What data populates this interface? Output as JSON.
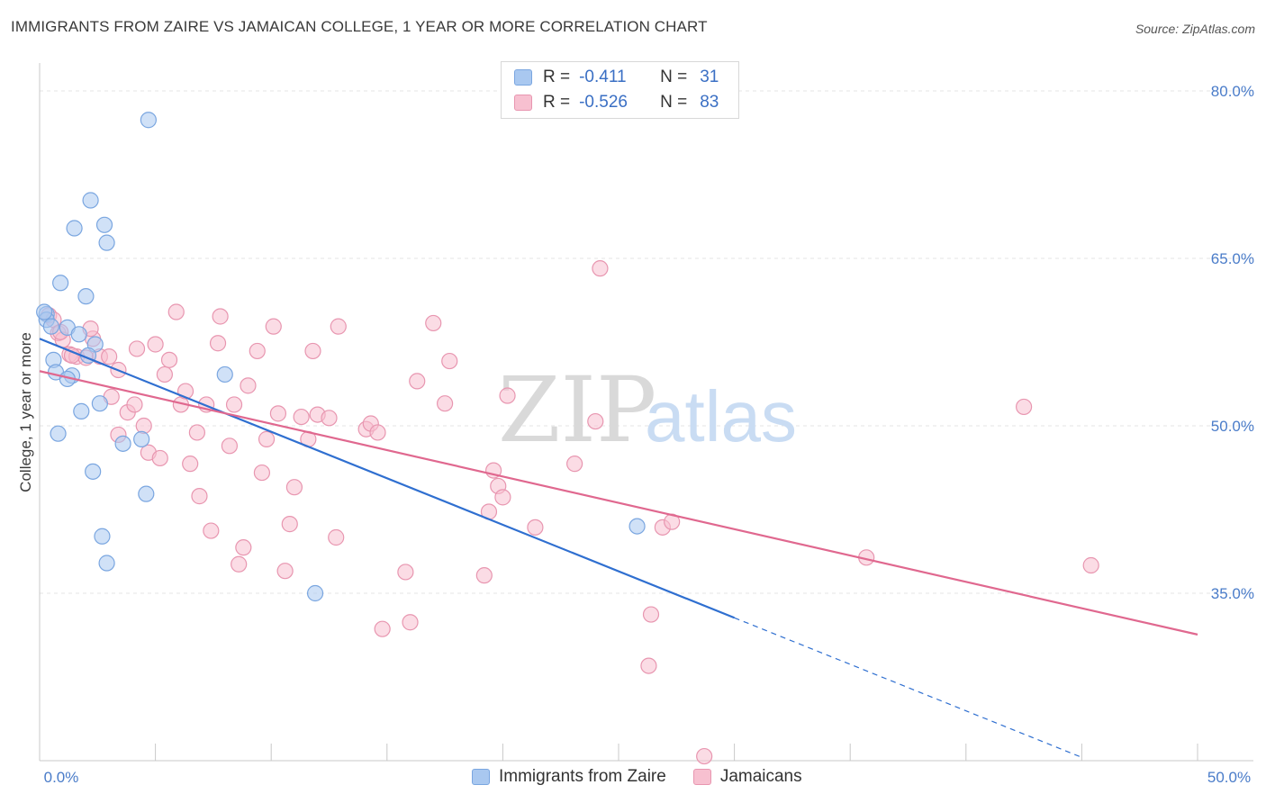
{
  "header": {
    "title": "IMMIGRANTS FROM ZAIRE VS JAMAICAN COLLEGE, 1 YEAR OR MORE CORRELATION CHART",
    "source": "Source: ZipAtlas.com"
  },
  "watermark": {
    "zip": "ZIP",
    "atlas": "atlas"
  },
  "legend": {
    "rows": [
      {
        "r_label": "R =",
        "r_value": "-0.411",
        "n_label": "N =",
        "n_value": "31",
        "color": "#a9c8f0",
        "border": "#7aa6e0"
      },
      {
        "r_label": "R =",
        "r_value": "-0.526",
        "n_label": "N =",
        "n_value": "83",
        "color": "#f7c0d0",
        "border": "#e896b0"
      }
    ]
  },
  "bottom_legend": [
    {
      "label": "Immigrants from Zaire",
      "color": "#a9c8f0",
      "border": "#7aa6e0"
    },
    {
      "label": "Jamaicans",
      "color": "#f7c0d0",
      "border": "#e896b0"
    }
  ],
  "chart_data": {
    "type": "scatter",
    "ylabel": "College, 1 year or more",
    "xlim": [
      0,
      50
    ],
    "ylim": [
      20,
      82.5
    ],
    "x_tick_labels": [
      "0.0%",
      "50.0%"
    ],
    "y_ticks": [
      35,
      50,
      65,
      80
    ],
    "y_tick_labels": [
      "35.0%",
      "50.0%",
      "65.0%",
      "80.0%"
    ],
    "grid": true,
    "series": [
      {
        "name": "Immigrants from Zaire",
        "color": "#7aa6e0",
        "fill": "#a9c8f0",
        "trend": {
          "x0": 0,
          "y0": 57.8,
          "x1": 30,
          "y1": 32.8,
          "dash_to_x": 45,
          "dash_to_y": 20.3,
          "color": "#2f6fd0"
        },
        "points": [
          [
            4.7,
            77.4
          ],
          [
            2.2,
            70.2
          ],
          [
            1.5,
            67.7
          ],
          [
            2.8,
            68.0
          ],
          [
            2.9,
            66.4
          ],
          [
            0.9,
            62.8
          ],
          [
            2.0,
            61.6
          ],
          [
            0.3,
            60.0
          ],
          [
            0.3,
            59.5
          ],
          [
            0.5,
            58.9
          ],
          [
            1.2,
            58.8
          ],
          [
            1.7,
            58.2
          ],
          [
            2.4,
            57.3
          ],
          [
            2.1,
            56.3
          ],
          [
            0.6,
            55.9
          ],
          [
            0.7,
            54.8
          ],
          [
            1.4,
            54.5
          ],
          [
            1.2,
            54.2
          ],
          [
            8.0,
            54.6
          ],
          [
            2.6,
            52.0
          ],
          [
            1.8,
            51.3
          ],
          [
            0.8,
            49.3
          ],
          [
            4.4,
            48.8
          ],
          [
            3.6,
            48.4
          ],
          [
            2.3,
            45.9
          ],
          [
            4.6,
            43.9
          ],
          [
            2.7,
            40.1
          ],
          [
            2.9,
            37.7
          ],
          [
            25.8,
            41.0
          ],
          [
            11.9,
            35.0
          ],
          [
            0.2,
            60.2
          ]
        ]
      },
      {
        "name": "Jamaicans",
        "color": "#e896b0",
        "fill": "#f7c0d0",
        "trend": {
          "x0": 0,
          "y0": 54.9,
          "x1": 50,
          "y1": 31.3,
          "color": "#e0688f"
        },
        "points": [
          [
            0.4,
            59.9
          ],
          [
            0.6,
            59.5
          ],
          [
            0.8,
            58.3
          ],
          [
            1.0,
            57.7
          ],
          [
            1.3,
            56.4
          ],
          [
            1.6,
            56.2
          ],
          [
            2.0,
            56.1
          ],
          [
            2.3,
            57.8
          ],
          [
            2.6,
            56.2
          ],
          [
            3.0,
            56.2
          ],
          [
            3.4,
            55.0
          ],
          [
            3.1,
            52.6
          ],
          [
            3.4,
            49.2
          ],
          [
            3.8,
            51.2
          ],
          [
            4.1,
            51.9
          ],
          [
            4.2,
            56.9
          ],
          [
            4.5,
            50.0
          ],
          [
            4.7,
            47.6
          ],
          [
            5.0,
            57.3
          ],
          [
            5.2,
            47.1
          ],
          [
            5.4,
            54.6
          ],
          [
            5.6,
            55.9
          ],
          [
            5.9,
            60.2
          ],
          [
            6.1,
            51.9
          ],
          [
            6.3,
            53.1
          ],
          [
            6.5,
            46.6
          ],
          [
            6.8,
            49.4
          ],
          [
            6.9,
            43.7
          ],
          [
            7.2,
            51.9
          ],
          [
            7.4,
            40.6
          ],
          [
            7.8,
            59.8
          ],
          [
            7.7,
            57.4
          ],
          [
            8.2,
            48.2
          ],
          [
            8.4,
            51.9
          ],
          [
            8.6,
            37.6
          ],
          [
            8.8,
            39.1
          ],
          [
            9.0,
            53.6
          ],
          [
            9.4,
            56.7
          ],
          [
            9.6,
            45.8
          ],
          [
            9.8,
            48.8
          ],
          [
            10.1,
            58.9
          ],
          [
            10.3,
            51.1
          ],
          [
            10.6,
            37.0
          ],
          [
            10.8,
            41.2
          ],
          [
            11.0,
            44.5
          ],
          [
            11.3,
            50.8
          ],
          [
            11.6,
            48.8
          ],
          [
            11.8,
            56.7
          ],
          [
            12.0,
            51.0
          ],
          [
            12.5,
            50.7
          ],
          [
            12.8,
            40.0
          ],
          [
            12.9,
            58.9
          ],
          [
            14.1,
            49.7
          ],
          [
            14.3,
            50.2
          ],
          [
            14.6,
            49.4
          ],
          [
            14.8,
            31.8
          ],
          [
            15.8,
            36.9
          ],
          [
            16.0,
            32.4
          ],
          [
            16.3,
            54.0
          ],
          [
            17.0,
            59.2
          ],
          [
            17.5,
            52.0
          ],
          [
            17.7,
            55.8
          ],
          [
            19.2,
            36.6
          ],
          [
            19.4,
            42.3
          ],
          [
            19.6,
            46.0
          ],
          [
            19.8,
            44.6
          ],
          [
            20.0,
            43.6
          ],
          [
            20.2,
            52.7
          ],
          [
            21.4,
            40.9
          ],
          [
            23.1,
            46.6
          ],
          [
            24.0,
            50.4
          ],
          [
            24.2,
            64.1
          ],
          [
            26.3,
            28.5
          ],
          [
            26.4,
            33.1
          ],
          [
            26.9,
            40.9
          ],
          [
            27.3,
            41.4
          ],
          [
            28.7,
            20.4
          ],
          [
            35.7,
            38.2
          ],
          [
            42.5,
            51.7
          ],
          [
            45.4,
            37.5
          ],
          [
            0.9,
            58.4
          ],
          [
            2.2,
            58.7
          ],
          [
            1.4,
            56.3
          ]
        ]
      }
    ]
  }
}
